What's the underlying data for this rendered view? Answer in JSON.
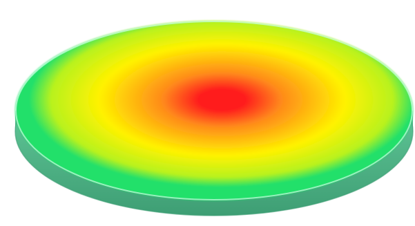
{
  "colors": {
    "background": "#ffffff",
    "hotspot": "#ff1e1e",
    "warm": "#ff8a1a",
    "mid": "#fff200",
    "cool": "#b8f21e",
    "rim": "#22e06a",
    "edge_highlight": "#c8ffe0",
    "side": "#5fc596",
    "side_dark": "#3e9e74"
  }
}
